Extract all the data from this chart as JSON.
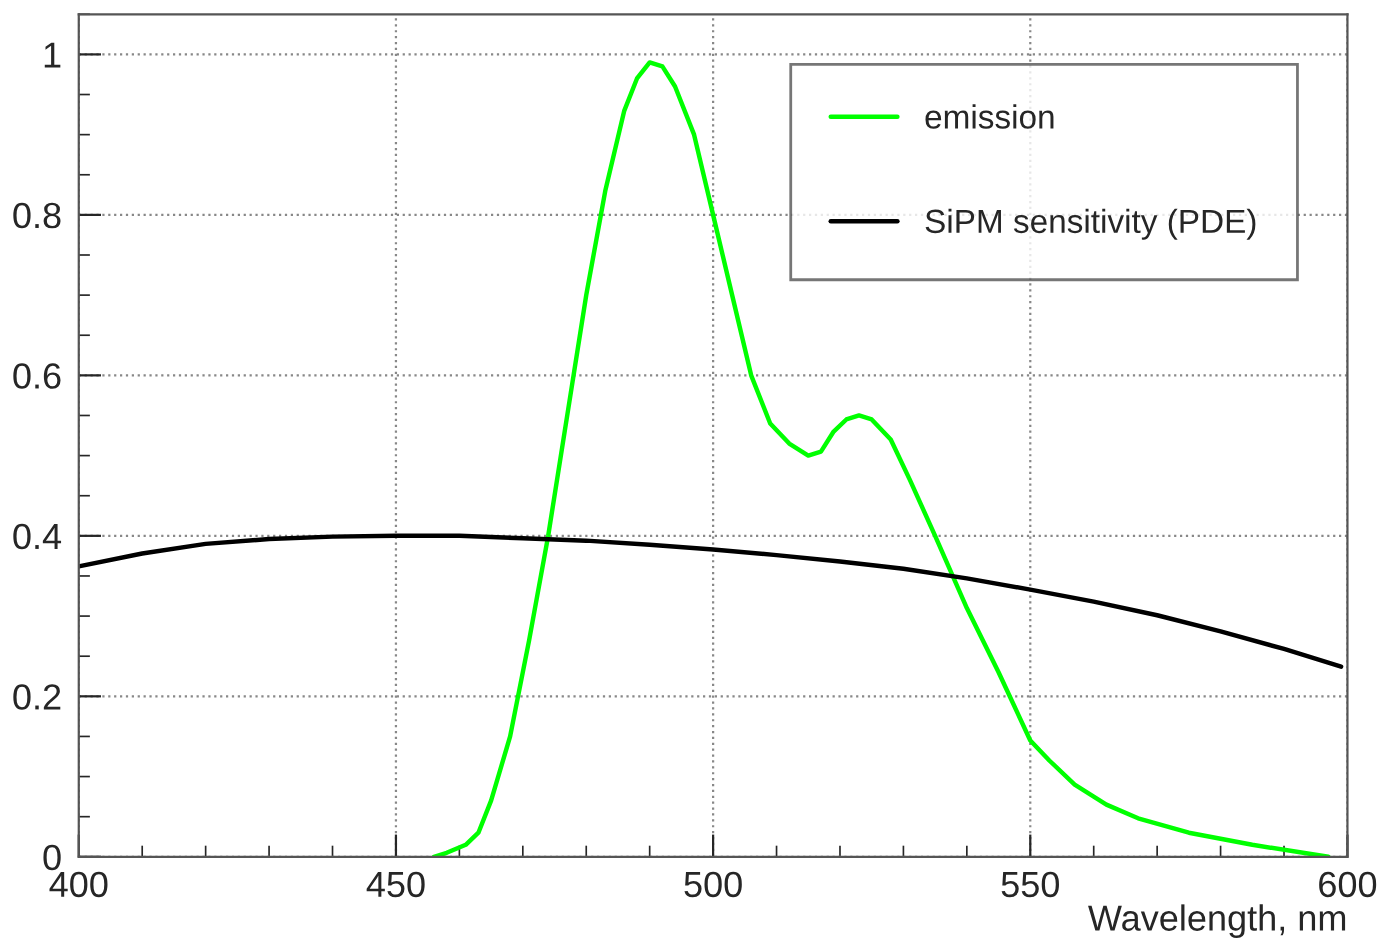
{
  "chart_data": {
    "type": "line",
    "xlabel": "Wavelength, nm",
    "xlim": [
      400,
      600
    ],
    "xticks": [
      400,
      450,
      500,
      550,
      600
    ],
    "ylim": [
      0,
      1.05
    ],
    "yticks": [
      0,
      0.2,
      0.4,
      0.6,
      0.8,
      1
    ],
    "grid": true,
    "legend": "top right",
    "line_style": "solid",
    "marker": "none",
    "series": [
      {
        "name": "emission",
        "color": "#00ff00",
        "x": [
          456,
          458,
          461,
          463,
          465,
          468,
          471,
          474,
          477,
          480,
          483,
          486,
          488,
          490,
          492,
          494,
          497,
          500,
          503,
          506,
          509,
          512,
          515,
          517,
          519,
          521,
          523,
          525,
          528,
          531,
          535,
          540,
          545,
          550,
          553,
          557,
          562,
          567,
          575,
          585,
          597
        ],
        "values": [
          0,
          0.005,
          0.015,
          0.03,
          0.07,
          0.15,
          0.27,
          0.4,
          0.55,
          0.7,
          0.83,
          0.93,
          0.97,
          0.99,
          0.985,
          0.96,
          0.9,
          0.8,
          0.7,
          0.6,
          0.54,
          0.515,
          0.5,
          0.505,
          0.53,
          0.545,
          0.55,
          0.545,
          0.52,
          0.47,
          0.4,
          0.31,
          0.23,
          0.145,
          0.12,
          0.09,
          0.065,
          0.048,
          0.03,
          0.015,
          0
        ]
      },
      {
        "name": "SiPM sensitivity (PDE)",
        "color": "#000000",
        "x": [
          400,
          410,
          420,
          430,
          440,
          450,
          460,
          470,
          480,
          490,
          500,
          510,
          520,
          530,
          540,
          550,
          560,
          570,
          580,
          590,
          599
        ],
        "values": [
          0.362,
          0.378,
          0.39,
          0.396,
          0.399,
          0.4,
          0.4,
          0.397,
          0.394,
          0.389,
          0.383,
          0.376,
          0.368,
          0.359,
          0.347,
          0.333,
          0.318,
          0.301,
          0.281,
          0.259,
          0.237
        ]
      }
    ]
  }
}
